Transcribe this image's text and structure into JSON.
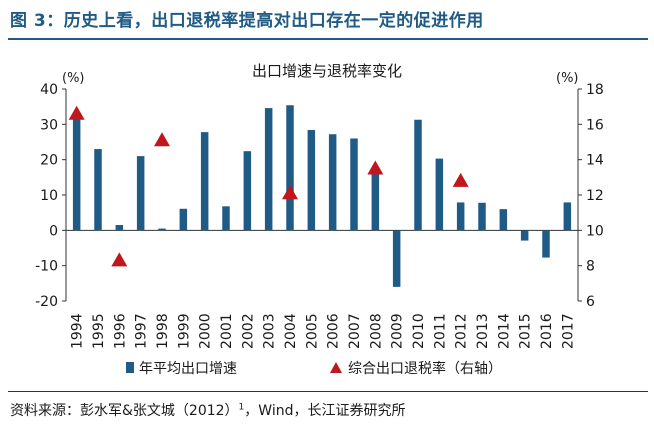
{
  "figure_title": "图 3：历史上看，出口退税率提高对出口存在一定的促进作用",
  "source": {
    "prefix": "资料来源：彭水军&张文城（2012）",
    "superscript": "1",
    "suffix": "，Wind，长江证券研究所"
  },
  "colors": {
    "title": "#1f5b84",
    "bar": "#1f5b84",
    "marker": "#c0161d"
  },
  "chart_data": {
    "type": "bar",
    "title": "出口增速与退税率变化",
    "ylabel_left": "(%)",
    "ylabel_right": "(%)",
    "ylim_left": [
      -20,
      40
    ],
    "ylim_right": [
      6,
      18
    ],
    "yticks_left": [
      -20,
      -10,
      0,
      10,
      20,
      30,
      40
    ],
    "yticks_right": [
      6,
      8,
      10,
      12,
      14,
      16,
      18
    ],
    "categories": [
      "1994",
      "1995",
      "1996",
      "1997",
      "1998",
      "1999",
      "2000",
      "2001",
      "2002",
      "2003",
      "2004",
      "2005",
      "2006",
      "2007",
      "2008",
      "2009",
      "2010",
      "2011",
      "2012",
      "2013",
      "2014",
      "2015",
      "2016",
      "2017"
    ],
    "series": [
      {
        "name": "年平均出口增速",
        "type": "bar",
        "axis": "left",
        "values": [
          31.9,
          23.0,
          1.5,
          21.0,
          0.5,
          6.1,
          27.8,
          6.8,
          22.4,
          34.6,
          35.4,
          28.4,
          27.2,
          26.0,
          17.3,
          -16.0,
          31.3,
          20.3,
          7.9,
          7.8,
          6.0,
          -2.9,
          -7.7,
          7.9
        ]
      },
      {
        "name": "综合出口退税率（右轴）",
        "type": "marker",
        "axis": "right",
        "points": [
          {
            "x": "1994",
            "y": 16.6
          },
          {
            "x": "1996",
            "y": 8.3
          },
          {
            "x": "1998",
            "y": 15.1
          },
          {
            "x": "2004",
            "y": 12.1
          },
          {
            "x": "2008",
            "y": 13.5
          },
          {
            "x": "2012",
            "y": 12.8
          }
        ]
      }
    ],
    "legend_placement": "bottom",
    "grid": false
  }
}
